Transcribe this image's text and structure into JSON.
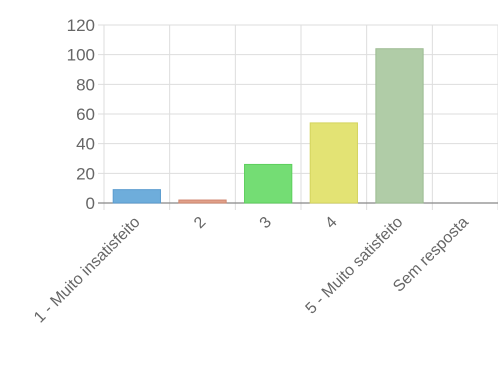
{
  "chart_data": {
    "type": "bar",
    "categories": [
      "1 - Muito insatisfeito",
      "2",
      "3",
      "4",
      "5 - Muito satisfeito",
      "Sem resposta"
    ],
    "values": [
      9,
      2,
      26,
      54,
      104,
      0
    ],
    "colors": [
      "#6eaddb",
      "#e0a089",
      "#74dd74",
      "#e3e374",
      "#b0cca7",
      "#cccccc"
    ],
    "border_colors": [
      "#5a9ccf",
      "#d08770",
      "#5dcf5d",
      "#d4d45e",
      "#9cbb92",
      "#bbbbbb"
    ],
    "yticks": [
      "0",
      "20",
      "40",
      "60",
      "80",
      "100",
      "120"
    ],
    "ylim": [
      0,
      120
    ],
    "grid": true,
    "legend": "none",
    "title": "",
    "xlabel": "",
    "ylabel": ""
  }
}
